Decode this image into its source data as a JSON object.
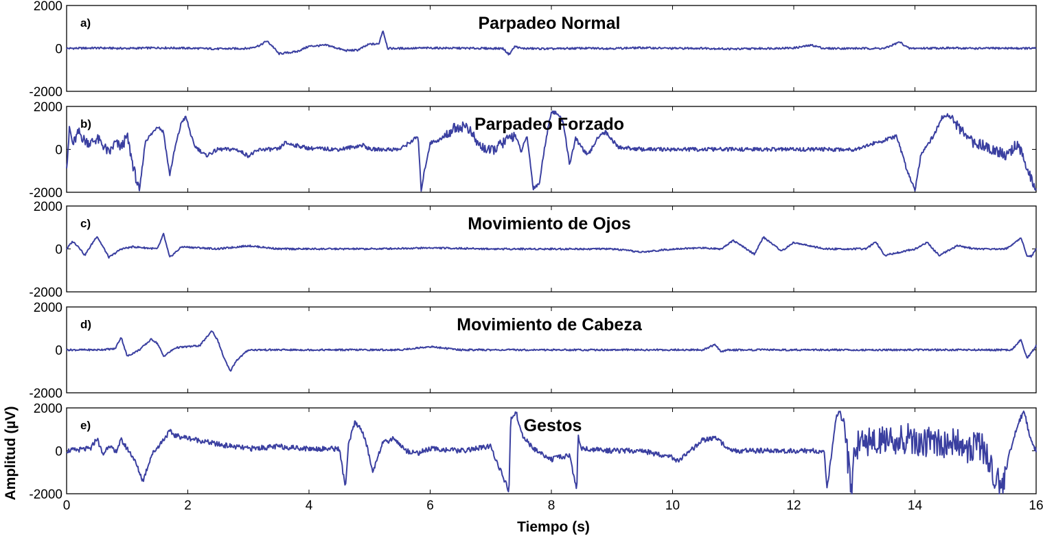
{
  "figure": {
    "xlabel": "Tiempo (s)",
    "ylabel": "Amplitud (µV)",
    "line_color": "#3a3fa0"
  },
  "chart_data": [
    {
      "type": "line",
      "letter": "a)",
      "title": "Parpadeo Normal",
      "xlim": [
        0,
        16
      ],
      "ylim": [
        -2000,
        2000
      ],
      "xticks": [
        0,
        2,
        4,
        6,
        8,
        10,
        12,
        14,
        16
      ],
      "yticks": [
        -2000,
        0,
        2000
      ],
      "x": [
        0,
        0.5,
        1,
        1.5,
        2,
        2.5,
        3,
        3.2,
        3.3,
        3.4,
        3.5,
        3.8,
        4.0,
        4.3,
        4.6,
        4.8,
        5.0,
        5.15,
        5.22,
        5.3,
        5.5,
        6.0,
        6.5,
        7.0,
        7.2,
        7.3,
        7.4,
        7.5,
        8.0,
        8.5,
        9.0,
        9.5,
        10.0,
        10.5,
        11.0,
        11.5,
        12.0,
        12.3,
        12.5,
        13.0,
        13.5,
        13.75,
        13.9,
        14.5,
        15.0,
        15.5,
        16.0
      ],
      "y": [
        0,
        20,
        0,
        30,
        10,
        -20,
        0,
        150,
        350,
        100,
        -250,
        -150,
        100,
        150,
        -100,
        -80,
        200,
        200,
        850,
        0,
        0,
        20,
        10,
        0,
        0,
        -280,
        100,
        0,
        -20,
        10,
        0,
        30,
        0,
        10,
        -30,
        0,
        20,
        150,
        0,
        0,
        0,
        300,
        0,
        20,
        0,
        10,
        0
      ]
    },
    {
      "type": "line",
      "letter": "b)",
      "title": "Parpadeo Forzado",
      "xlim": [
        0,
        16
      ],
      "ylim": [
        -2000,
        2000
      ],
      "xticks": [
        0,
        2,
        4,
        6,
        8,
        10,
        12,
        14,
        16
      ],
      "yticks": [
        -2000,
        0,
        2000
      ],
      "x": [
        0,
        0.05,
        0.1,
        0.2,
        0.3,
        0.4,
        0.5,
        0.6,
        0.7,
        0.8,
        0.9,
        1.0,
        1.1,
        1.2,
        1.3,
        1.4,
        1.5,
        1.6,
        1.7,
        1.8,
        1.9,
        1.97,
        2.1,
        2.3,
        2.5,
        2.8,
        3.0,
        3.2,
        3.5,
        3.6,
        4.0,
        4.5,
        4.9,
        5.0,
        5.5,
        5.8,
        5.85,
        5.92,
        6.0,
        6.2,
        6.4,
        6.6,
        6.8,
        7.0,
        7.2,
        7.4,
        7.5,
        7.6,
        7.7,
        7.8,
        7.9,
        8.0,
        8.12,
        8.2,
        8.3,
        8.4,
        8.6,
        8.8,
        8.9,
        9.1,
        9.5,
        10.0,
        11.0,
        12.0,
        13.0,
        13.7,
        13.85,
        14.0,
        14.1,
        14.3,
        14.45,
        14.55,
        14.7,
        14.9,
        15.1,
        15.3,
        15.5,
        15.7,
        15.85,
        16.0
      ],
      "y": [
        -800,
        1000,
        200,
        800,
        400,
        300,
        500,
        200,
        -200,
        300,
        100,
        600,
        -800,
        -2000,
        400,
        700,
        1100,
        800,
        -1200,
        200,
        1300,
        1500,
        200,
        -300,
        0,
        0,
        -300,
        0,
        0,
        300,
        50,
        0,
        200,
        0,
        0,
        600,
        -1900,
        -800,
        300,
        500,
        1000,
        1100,
        200,
        -100,
        300,
        700,
        -100,
        600,
        -1800,
        -1600,
        300,
        1800,
        1600,
        1200,
        -700,
        500,
        -300,
        700,
        800,
        100,
        0,
        0,
        0,
        0,
        0,
        600,
        -800,
        -1900,
        -200,
        600,
        1500,
        1600,
        1100,
        400,
        200,
        0,
        -300,
        300,
        -1000,
        -1800
      ]
    },
    {
      "type": "line",
      "letter": "c)",
      "title": "Movimiento de Ojos",
      "xlim": [
        0,
        16
      ],
      "ylim": [
        -2000,
        2000
      ],
      "xticks": [
        0,
        2,
        4,
        6,
        8,
        10,
        12,
        14,
        16
      ],
      "yticks": [
        -2000,
        0,
        2000
      ],
      "x": [
        0,
        0.1,
        0.2,
        0.3,
        0.5,
        0.7,
        0.9,
        1.1,
        1.5,
        1.6,
        1.7,
        1.9,
        2.5,
        3.0,
        3.5,
        4.0,
        5.0,
        6.0,
        7.0,
        8.0,
        9.0,
        9.5,
        10.0,
        10.5,
        10.8,
        11.0,
        11.35,
        11.5,
        11.8,
        12.0,
        12.5,
        13.2,
        13.35,
        13.5,
        14.0,
        14.2,
        14.4,
        14.7,
        15.0,
        15.5,
        15.75,
        15.85,
        15.92,
        16.0
      ],
      "y": [
        0,
        350,
        100,
        -300,
        600,
        -400,
        0,
        100,
        0,
        700,
        -400,
        100,
        0,
        150,
        0,
        0,
        0,
        50,
        0,
        0,
        0,
        -150,
        0,
        50,
        0,
        400,
        -250,
        550,
        -100,
        300,
        0,
        0,
        350,
        -300,
        0,
        300,
        -300,
        150,
        0,
        0,
        500,
        -300,
        -350,
        0
      ]
    },
    {
      "type": "line",
      "letter": "d)",
      "title": "Movimiento de Cabeza",
      "xlim": [
        0,
        16
      ],
      "ylim": [
        -2000,
        2000
      ],
      "xticks": [
        0,
        2,
        4,
        6,
        8,
        10,
        12,
        14,
        16
      ],
      "yticks": [
        -2000,
        0,
        2000
      ],
      "x": [
        0,
        0.5,
        0.8,
        0.9,
        1.0,
        1.2,
        1.4,
        1.5,
        1.6,
        1.8,
        2.2,
        2.4,
        2.5,
        2.6,
        2.7,
        2.8,
        3.0,
        3.5,
        4.0,
        4.5,
        5.0,
        5.5,
        6.0,
        6.5,
        7.0,
        8.0,
        9.0,
        10.0,
        10.5,
        10.7,
        10.8,
        10.9,
        11.2,
        12.0,
        13.0,
        14.0,
        15.0,
        15.6,
        15.75,
        15.85,
        16.0
      ],
      "y": [
        0,
        0,
        50,
        600,
        -300,
        0,
        500,
        300,
        -300,
        100,
        200,
        900,
        400,
        -400,
        -1000,
        -500,
        0,
        0,
        0,
        0,
        0,
        0,
        150,
        0,
        0,
        0,
        0,
        0,
        0,
        250,
        -100,
        0,
        0,
        0,
        0,
        0,
        0,
        0,
        500,
        -400,
        200
      ]
    },
    {
      "type": "line",
      "letter": "e)",
      "title": "Gestos",
      "xlim": [
        0,
        16
      ],
      "ylim": [
        -2000,
        2000
      ],
      "xticks": [
        0,
        2,
        4,
        6,
        8,
        10,
        12,
        14,
        16
      ],
      "yticks": [
        -2000,
        0,
        2000
      ],
      "x": [
        0,
        0.4,
        0.5,
        0.6,
        0.7,
        0.8,
        0.9,
        1.0,
        1.1,
        1.26,
        1.4,
        1.7,
        1.8,
        2.0,
        2.5,
        3.0,
        3.5,
        4.0,
        4.5,
        4.6,
        4.65,
        4.75,
        4.85,
        4.95,
        5.05,
        5.2,
        5.4,
        5.6,
        5.8,
        6.0,
        6.5,
        7.0,
        7.3,
        7.33,
        7.42,
        7.5,
        7.7,
        8.0,
        8.3,
        8.42,
        8.44,
        8.5,
        9.0,
        9.5,
        10.0,
        10.1,
        10.3,
        10.5,
        10.7,
        11.0,
        12.0,
        12.5,
        12.55,
        12.7,
        12.76,
        12.85,
        12.95,
        13.0,
        13.1,
        13.3,
        13.5,
        13.7,
        13.9,
        14.1,
        14.3,
        14.5,
        14.7,
        14.9,
        15.1,
        15.3,
        15.45,
        15.55,
        15.7,
        15.8,
        15.9,
        16.0
      ],
      "y": [
        0,
        100,
        600,
        -200,
        300,
        -100,
        500,
        100,
        -300,
        -1400,
        -200,
        900,
        700,
        600,
        300,
        100,
        200,
        100,
        100,
        -1700,
        200,
        1300,
        1100,
        300,
        -1000,
        300,
        600,
        0,
        -100,
        100,
        0,
        200,
        -1900,
        1500,
        1800,
        800,
        100,
        -400,
        -200,
        -1900,
        700,
        100,
        0,
        0,
        -300,
        -500,
        0,
        500,
        600,
        0,
        0,
        0,
        -1800,
        1500,
        1900,
        700,
        -1900,
        -300,
        700,
        300,
        500,
        400,
        600,
        200,
        500,
        300,
        400,
        100,
        300,
        -1000,
        -1800,
        -200,
        1200,
        1900,
        600,
        0
      ]
    }
  ]
}
